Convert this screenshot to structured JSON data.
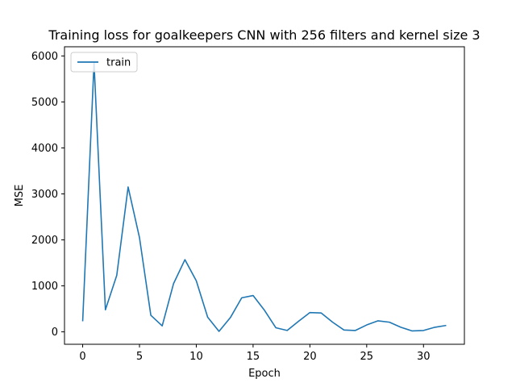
{
  "chart_data": {
    "type": "line",
    "title": "Training loss for goalkeepers CNN with 256 filters and kernel size 3",
    "xlabel": "Epoch",
    "ylabel": "MSE",
    "xlim": [
      -1.6,
      33.6
    ],
    "ylim": [
      -270,
      6200
    ],
    "xticks": [
      0,
      5,
      10,
      15,
      20,
      25,
      30
    ],
    "yticks": [
      0,
      1000,
      2000,
      3000,
      4000,
      5000,
      6000
    ],
    "grid": false,
    "legend_position": "top-left",
    "series": [
      {
        "name": "train",
        "color": "#1f77b4",
        "x": [
          0,
          1,
          2,
          3,
          4,
          5,
          6,
          7,
          8,
          9,
          10,
          11,
          12,
          13,
          14,
          15,
          16,
          17,
          18,
          19,
          20,
          21,
          22,
          23,
          24,
          25,
          26,
          27,
          28,
          29,
          30,
          31,
          32
        ],
        "values": [
          230,
          5850,
          480,
          1230,
          3150,
          2050,
          360,
          130,
          1050,
          1570,
          1110,
          320,
          10,
          310,
          740,
          790,
          470,
          90,
          30,
          230,
          420,
          410,
          210,
          40,
          30,
          150,
          240,
          210,
          100,
          20,
          30,
          100,
          140
        ]
      }
    ]
  }
}
